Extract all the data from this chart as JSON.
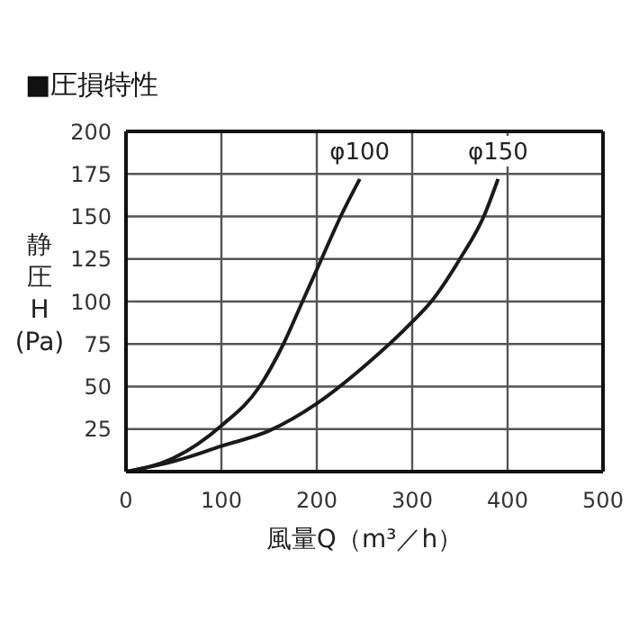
{
  "chart_data": {
    "type": "line",
    "title": "■圧損特性",
    "xlabel": "風量Q（m³／h）",
    "ylabel": "静圧H(Pa)",
    "xlim": [
      0,
      500
    ],
    "xticks": [
      0,
      100,
      200,
      300,
      400,
      500
    ],
    "ylim": [
      0,
      200
    ],
    "yticks": [
      {
        "value": 0,
        "label": null
      },
      25,
      50,
      75,
      100,
      125,
      150,
      175,
      200
    ],
    "grid": true,
    "legend": false,
    "marker": "none",
    "line_style": "solid",
    "series": [
      {
        "name": "φ100",
        "color": "#1a1a1a",
        "x": [
          0,
          50,
          100,
          140,
          165,
          185,
          205,
          225,
          245
        ],
        "values": [
          0,
          8,
          27,
          50,
          75,
          100,
          125,
          150,
          172
        ]
      },
      {
        "name": "φ150",
        "color": "#1a1a1a",
        "x": [
          0,
          50,
          100,
          150,
          200,
          250,
          300,
          320,
          350,
          375,
          390
        ],
        "values": [
          0,
          6,
          15,
          24,
          40,
          62,
          88,
          100,
          125,
          150,
          172
        ]
      }
    ]
  }
}
